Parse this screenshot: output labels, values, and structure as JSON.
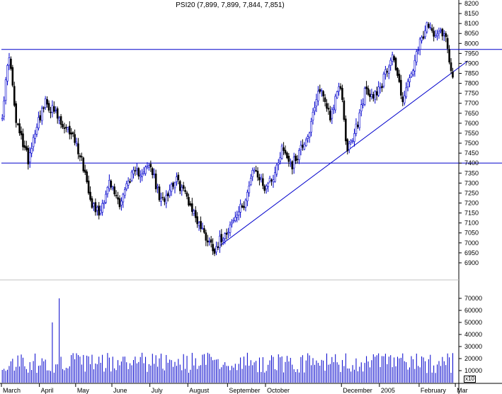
{
  "chart_data": {
    "type": "candlestick",
    "title": "PSI20 (7,899, 7,899, 7,844, 7,851)",
    "xlabel": "",
    "ylabel": "",
    "ylim": [
      6850,
      8200
    ],
    "ytick_values": [
      6900,
      6950,
      7000,
      7050,
      7100,
      7150,
      7200,
      7250,
      7300,
      7350,
      7400,
      7450,
      7500,
      7550,
      7600,
      7650,
      7700,
      7750,
      7800,
      7850,
      7900,
      7950,
      8000,
      8050,
      8100,
      8150,
      8200
    ],
    "ytick_labels": [
      "6900",
      "6950",
      "7000",
      "7050",
      "7100",
      "7150",
      "7200",
      "7250",
      "7300",
      "7350",
      "7400",
      "7450",
      "7500",
      "7550",
      "7600",
      "7650",
      "7700",
      "7750",
      "7800",
      "7850",
      "7900",
      "7950",
      "8000",
      "8050",
      "8100",
      "8150",
      "8200"
    ],
    "month_labels": [
      "March",
      "April",
      "May",
      "June",
      "July",
      "August",
      "September",
      "October",
      "December",
      "2005",
      "February",
      "Mar"
    ],
    "month_start_index": [
      0,
      22,
      43,
      64,
      86,
      108,
      131,
      153,
      197,
      219,
      242,
      263
    ],
    "grid": false,
    "horizontal_lines": [
      7970,
      7400
    ],
    "trendline": {
      "start": {
        "index": 122,
        "value": 6960
      },
      "end": {
        "index": 264,
        "value": 7870
      }
    },
    "price_anchors": [
      {
        "index": 0,
        "value": 7650
      },
      {
        "index": 4,
        "value": 7950
      },
      {
        "index": 8,
        "value": 7600
      },
      {
        "index": 12,
        "value": 7500
      },
      {
        "index": 15,
        "value": 7420
      },
      {
        "index": 20,
        "value": 7600
      },
      {
        "index": 25,
        "value": 7700
      },
      {
        "index": 30,
        "value": 7660
      },
      {
        "index": 36,
        "value": 7560
      },
      {
        "index": 40,
        "value": 7560
      },
      {
        "index": 46,
        "value": 7420
      },
      {
        "index": 52,
        "value": 7200
      },
      {
        "index": 56,
        "value": 7150
      },
      {
        "index": 62,
        "value": 7300
      },
      {
        "index": 68,
        "value": 7200
      },
      {
        "index": 74,
        "value": 7330
      },
      {
        "index": 80,
        "value": 7360
      },
      {
        "index": 86,
        "value": 7380
      },
      {
        "index": 92,
        "value": 7200
      },
      {
        "index": 100,
        "value": 7320
      },
      {
        "index": 106,
        "value": 7250
      },
      {
        "index": 112,
        "value": 7130
      },
      {
        "index": 118,
        "value": 7030
      },
      {
        "index": 123,
        "value": 6970
      },
      {
        "index": 128,
        "value": 7040
      },
      {
        "index": 134,
        "value": 7110
      },
      {
        "index": 140,
        "value": 7200
      },
      {
        "index": 146,
        "value": 7370
      },
      {
        "index": 152,
        "value": 7280
      },
      {
        "index": 158,
        "value": 7350
      },
      {
        "index": 162,
        "value": 7480
      },
      {
        "index": 168,
        "value": 7390
      },
      {
        "index": 172,
        "value": 7460
      },
      {
        "index": 178,
        "value": 7560
      },
      {
        "index": 184,
        "value": 7780
      },
      {
        "index": 190,
        "value": 7640
      },
      {
        "index": 196,
        "value": 7790
      },
      {
        "index": 200,
        "value": 7450
      },
      {
        "index": 206,
        "value": 7600
      },
      {
        "index": 210,
        "value": 7760
      },
      {
        "index": 214,
        "value": 7730
      },
      {
        "index": 220,
        "value": 7800
      },
      {
        "index": 226,
        "value": 7950
      },
      {
        "index": 232,
        "value": 7720
      },
      {
        "index": 238,
        "value": 7870
      },
      {
        "index": 242,
        "value": 8000
      },
      {
        "index": 246,
        "value": 8080
      },
      {
        "index": 250,
        "value": 8060
      },
      {
        "index": 254,
        "value": 8070
      },
      {
        "index": 257,
        "value": 8030
      },
      {
        "index": 259,
        "value": 7920
      },
      {
        "index": 261,
        "value": 7851
      }
    ],
    "volume_ylim": [
      0,
      80000
    ],
    "volume_tick_values": [
      10000,
      20000,
      30000,
      40000,
      50000,
      60000,
      70000
    ],
    "volume_tick_labels": [
      "10000",
      "20000",
      "30000",
      "40000",
      "50000",
      "60000",
      "70000"
    ],
    "volume_typical_range": [
      8000,
      25000
    ],
    "volume_spikes": [
      {
        "index": 29,
        "value": 50000
      },
      {
        "index": 33,
        "value": 70000
      }
    ],
    "volume_unit_label": "x10",
    "colors": {
      "up": "#0000cc",
      "down": "#000000",
      "line": "#0000cc",
      "axis": "#000000"
    }
  }
}
